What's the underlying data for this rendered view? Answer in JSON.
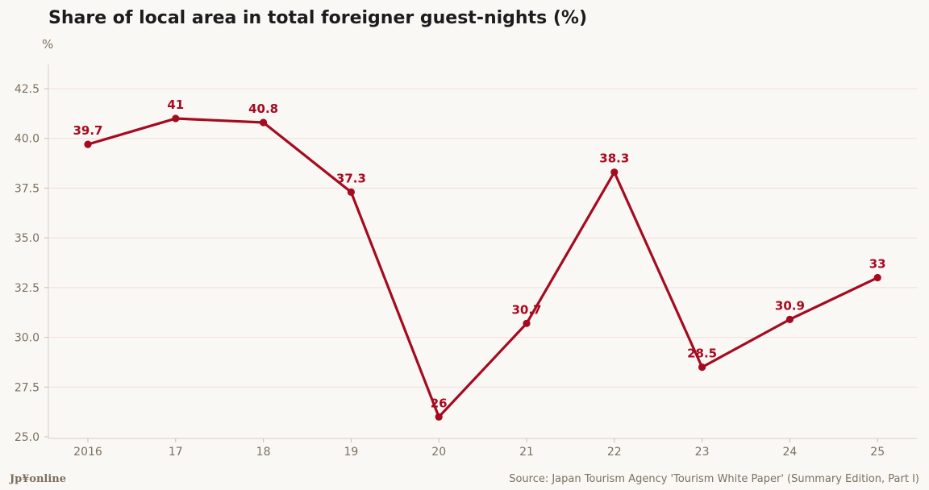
{
  "chart_data": {
    "type": "line",
    "title": "Share of local area in total foreigner guest-nights (%)",
    "ylabel": "%",
    "xlabel": "",
    "categories": [
      "2016",
      "17",
      "18",
      "19",
      "20",
      "21",
      "22",
      "23",
      "24",
      "25"
    ],
    "series": [
      {
        "values": [
          39.7,
          41,
          40.8,
          37.3,
          26,
          30.7,
          38.3,
          28.5,
          30.9,
          33
        ],
        "labels": [
          "39.7",
          "41",
          "40.8",
          "37.3",
          "26",
          "30.7",
          "38.3",
          "28.5",
          "30.9",
          "33"
        ],
        "color": "#a50a1f"
      }
    ],
    "ylim": [
      25.0,
      43.5
    ],
    "yticks": [
      "25.0",
      "27.5",
      "30.0",
      "32.5",
      "35.0",
      "37.5",
      "40.0",
      "42.5"
    ],
    "grid": true,
    "legend": "none"
  },
  "footer": {
    "brand": "Jp¥online",
    "source": "Source: Japan Tourism Agency 'Tourism White Paper' (Summary Edition, Part I)"
  },
  "colors": {
    "line": "#a50a1f",
    "grid": "#f1ddd9",
    "axis_text": "#7b7060",
    "background": "#faf8f5"
  }
}
